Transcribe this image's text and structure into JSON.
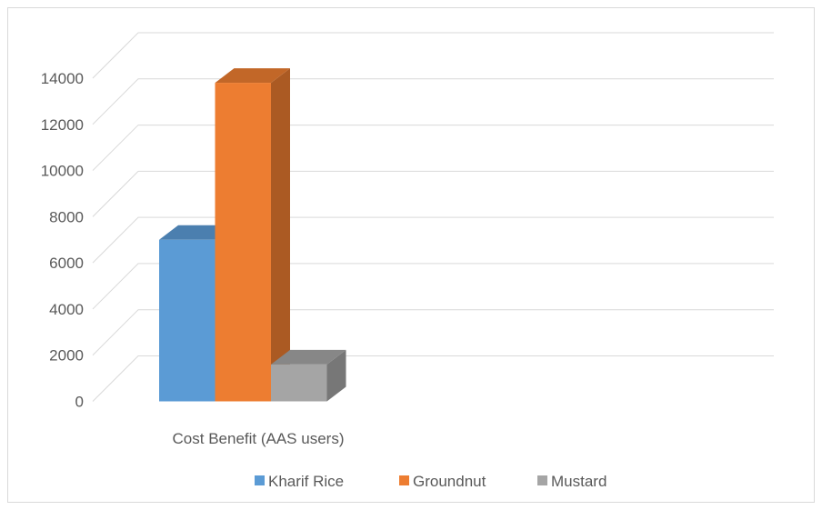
{
  "chart_data": {
    "type": "bar",
    "categories": [
      "Cost Benefit (AAS users)"
    ],
    "series": [
      {
        "name": "Kharif Rice",
        "values": [
          7000
        ],
        "color": "#5b9bd5"
      },
      {
        "name": "Groundnut",
        "values": [
          13800
        ],
        "color": "#ed7d31"
      },
      {
        "name": "Mustard",
        "values": [
          1600
        ],
        "color": "#a5a5a5"
      }
    ],
    "y_ticks": [
      "0",
      "2000",
      "4000",
      "6000",
      "8000",
      "10000",
      "12000",
      "14000"
    ],
    "ylim": [
      0,
      14000
    ],
    "grid": true,
    "legend_position": "bottom",
    "style": "3d-clustered-column",
    "title": "",
    "xlabel": "",
    "ylabel": ""
  }
}
